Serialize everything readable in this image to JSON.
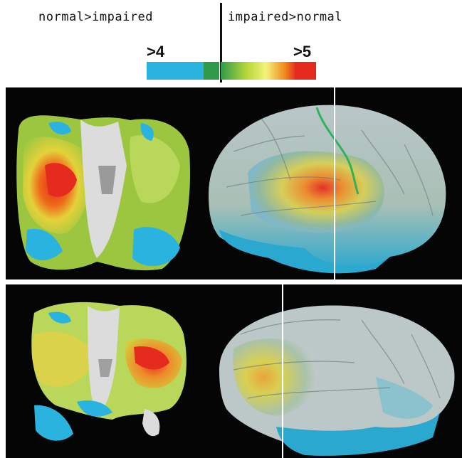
{
  "legend": {
    "left_label": "normal>impaired",
    "right_label": "impaired>normal",
    "low_threshold": ">4",
    "high_threshold": ">5"
  },
  "colors": {
    "cyan": "#2bb3e0",
    "green": "#2f9a4a",
    "yellow": "#e7e23a",
    "orange": "#f08a1c",
    "red": "#e42b1e",
    "background": "#050505",
    "brain_gray": "#cfcfcf"
  },
  "panels": [
    {
      "name": "top",
      "views": [
        "axial-slice",
        "sagittal-surface"
      ]
    },
    {
      "name": "bottom",
      "views": [
        "coronal-slice",
        "sagittal-surface"
      ]
    }
  ]
}
